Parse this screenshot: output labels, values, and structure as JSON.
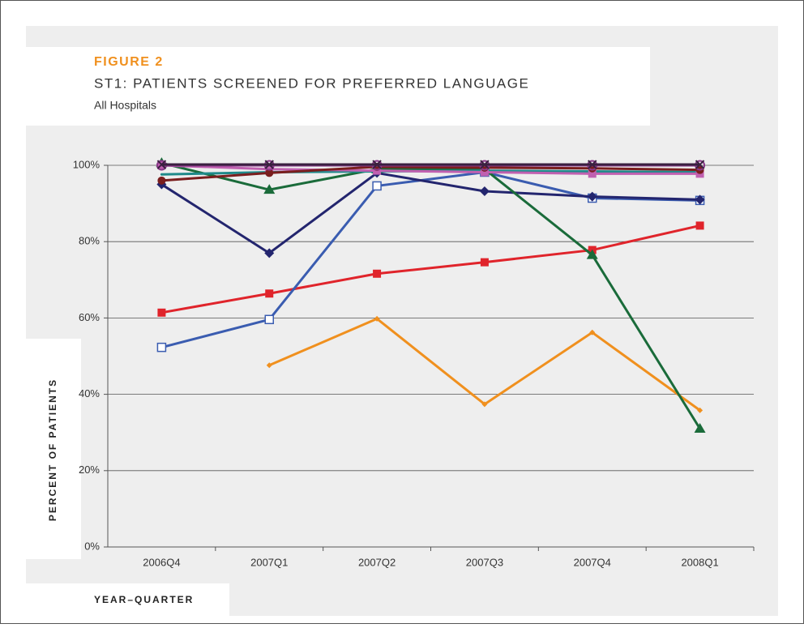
{
  "chart_data": {
    "type": "line",
    "figure_label": "FIGURE 2",
    "title": "ST1: PATIENTS SCREENED FOR PREFERRED LANGUAGE",
    "subtitle": "All Hospitals",
    "y_label": "PERCENT OF PATIENTS",
    "x_label": "YEAR–QUARTER",
    "categories": [
      "2006Q4",
      "2007Q1",
      "2007Q2",
      "2007Q3",
      "2007Q4",
      "2008Q1"
    ],
    "ylim": [
      0,
      100
    ],
    "yticks": [
      {
        "value": 0,
        "label": "0%"
      },
      {
        "value": 20,
        "label": "20%"
      },
      {
        "value": 40,
        "label": "40%"
      },
      {
        "value": 60,
        "label": "60%"
      },
      {
        "value": 80,
        "label": "80%"
      },
      {
        "value": 100,
        "label": "100%"
      }
    ],
    "grid": true,
    "series": [
      {
        "color": "#f0901e",
        "marker": "small-diamond",
        "values": [
          null,
          47.6,
          59.8,
          37.4,
          56.2,
          35.8
        ]
      },
      {
        "color": "#e0242b",
        "marker": "square",
        "values": [
          61.4,
          66.4,
          71.6,
          74.6,
          77.8,
          84.2
        ]
      },
      {
        "color": "#3a5cb0",
        "marker": "open-square",
        "values": [
          52.3,
          59.6,
          94.6,
          98.2,
          91.4,
          90.8
        ]
      },
      {
        "color": "#23256e",
        "marker": "diamond",
        "values": [
          95,
          77,
          98,
          93.2,
          91.8,
          91
        ]
      },
      {
        "color": "#1a6b3a",
        "marker": "triangle",
        "values": [
          100.6,
          93.6,
          99,
          99,
          76.5,
          31
        ]
      },
      {
        "color": "#1f8a8a",
        "marker": "none",
        "values": [
          97.6,
          98.2,
          98.4,
          98.6,
          98.4,
          98.2
        ]
      },
      {
        "color": "#c060b0",
        "marker": "square",
        "values": [
          100,
          99,
          98.6,
          98.2,
          97.8,
          97.8
        ]
      },
      {
        "color": "#7a1e1e",
        "marker": "circle",
        "values": [
          96,
          98,
          99.6,
          99.4,
          99.2,
          98.8
        ]
      },
      {
        "color": "#8a3a8a",
        "marker": "open-circle",
        "values": [
          100,
          100,
          100,
          100,
          100,
          100
        ]
      },
      {
        "color": "#3a2040",
        "marker": "x",
        "values": [
          100.2,
          100.2,
          100.2,
          100.2,
          100.2,
          100.2
        ]
      }
    ]
  }
}
